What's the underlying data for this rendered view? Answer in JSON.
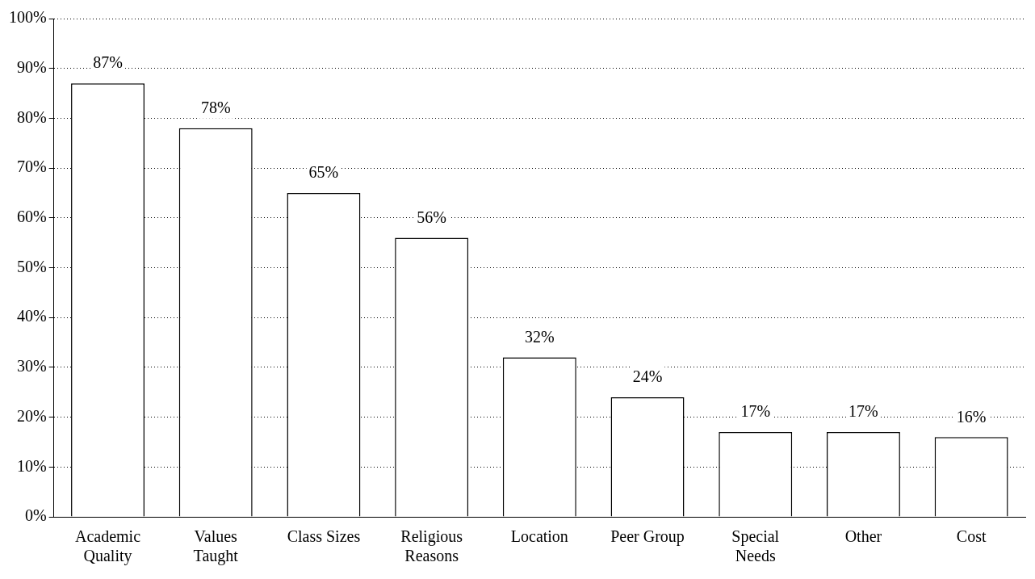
{
  "chart_data": {
    "type": "bar",
    "categories": [
      "Academic Quality",
      "Values Taught",
      "Class Sizes",
      "Religious Reasons",
      "Location",
      "Peer Group",
      "Special Needs",
      "Other",
      "Cost"
    ],
    "values": [
      87,
      78,
      65,
      56,
      32,
      24,
      17,
      17,
      16
    ],
    "value_labels": [
      "87%",
      "78%",
      "65%",
      "56%",
      "32%",
      "24%",
      "17%",
      "17%",
      "16%"
    ],
    "color": "#ffffff",
    "ylim": [
      0,
      100
    ],
    "yticks": [
      {
        "value": 0,
        "label": "0%"
      },
      {
        "value": 10,
        "label": "10%"
      },
      {
        "value": 20,
        "label": "20%"
      },
      {
        "value": 30,
        "label": "30%"
      },
      {
        "value": 40,
        "label": "40%"
      },
      {
        "value": 50,
        "label": "50%"
      },
      {
        "value": 60,
        "label": "60%"
      },
      {
        "value": 70,
        "label": "70%"
      },
      {
        "value": 80,
        "label": "80%"
      },
      {
        "value": 90,
        "label": "90%"
      },
      {
        "value": 100,
        "label": "100%"
      }
    ],
    "grid": "y",
    "legend": false
  }
}
